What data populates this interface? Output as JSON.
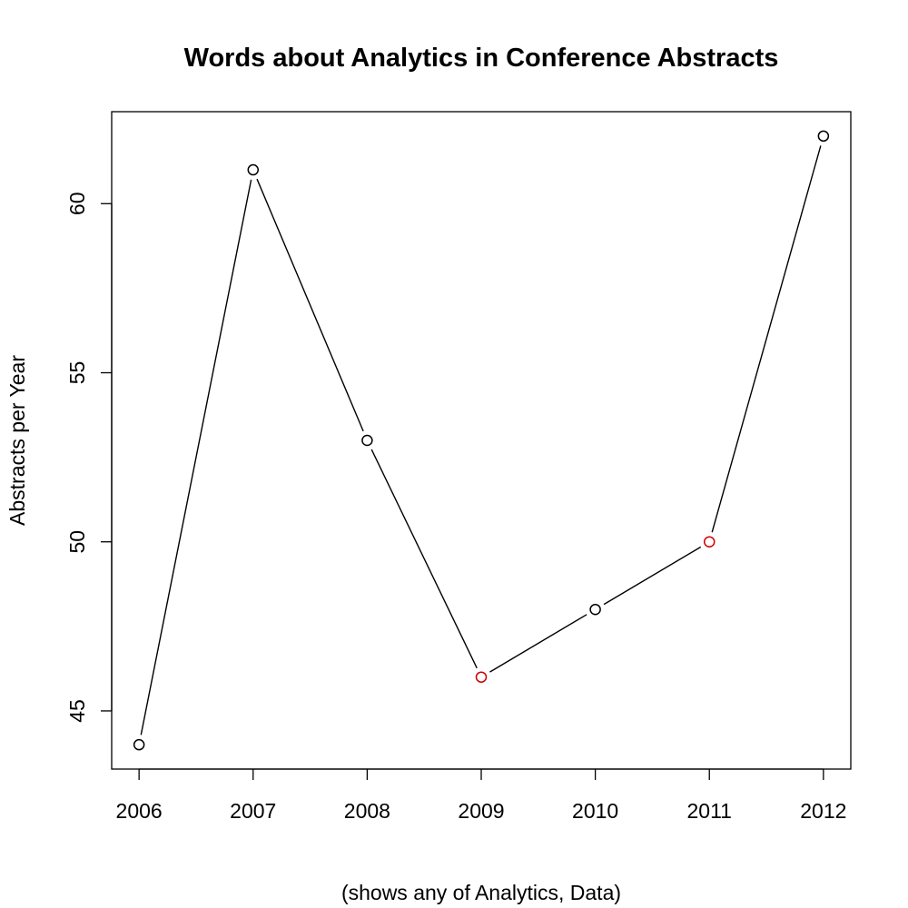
{
  "chart_data": {
    "type": "line",
    "title": "Words about Analytics in Conference Abstracts",
    "xlabel": "(shows any of Analytics, Data)",
    "ylabel": "Abstracts per Year",
    "x": [
      2006,
      2007,
      2008,
      2009,
      2010,
      2011,
      2012
    ],
    "values": [
      44,
      61,
      53,
      46,
      48,
      50,
      62
    ],
    "highlight_points": [
      2009,
      2011
    ],
    "highlight_color": "#cc0000",
    "point_color": "#000000",
    "line_color": "#000000",
    "xlim": [
      2005.76,
      2012.24
    ],
    "ylim": [
      43.28,
      62.72
    ],
    "x_ticks": [
      2006,
      2007,
      2008,
      2009,
      2010,
      2011,
      2012
    ],
    "y_ticks": [
      45,
      50,
      55,
      60
    ],
    "grid": false,
    "legend": "none"
  }
}
